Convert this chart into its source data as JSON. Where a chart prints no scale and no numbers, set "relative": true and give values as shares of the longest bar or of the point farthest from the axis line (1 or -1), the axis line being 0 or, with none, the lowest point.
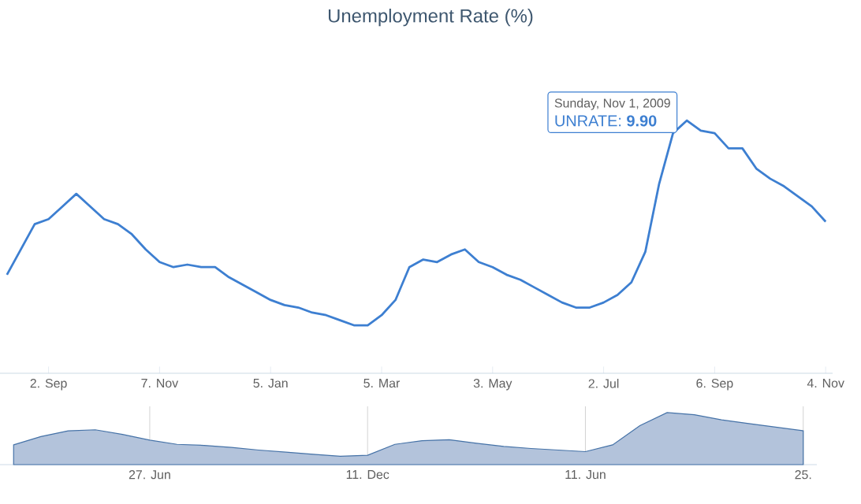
{
  "chart_data": [
    {
      "type": "line",
      "title": "Unemployment Rate (%)",
      "relative": true,
      "color": "#3d7fd1",
      "categories": [
        null,
        null,
        null,
        "2. Sep",
        null,
        null,
        null,
        null,
        null,
        null,
        null,
        "7. Nov",
        null,
        null,
        null,
        null,
        null,
        null,
        null,
        "5. Jan",
        null,
        null,
        null,
        null,
        null,
        null,
        null,
        "5. Mar",
        null,
        null,
        null,
        null,
        null,
        null,
        null,
        "3. May",
        null,
        null,
        null,
        null,
        null,
        null,
        null,
        "2. Jul",
        null,
        null,
        null,
        null,
        null,
        null,
        null,
        "6. Sep",
        null,
        null,
        null,
        null,
        null,
        null,
        null,
        "4. Nov"
      ],
      "values": [
        0.39,
        0.49,
        0.59,
        0.61,
        0.66,
        0.71,
        0.66,
        0.61,
        0.59,
        0.55,
        0.49,
        0.44,
        0.42,
        0.43,
        0.42,
        0.42,
        0.38,
        0.35,
        0.32,
        0.29,
        0.27,
        0.26,
        0.24,
        0.23,
        0.21,
        0.19,
        0.19,
        0.23,
        0.29,
        0.42,
        0.45,
        0.44,
        0.47,
        0.49,
        0.44,
        0.42,
        0.39,
        0.37,
        0.34,
        0.31,
        0.28,
        0.26,
        0.26,
        0.28,
        0.31,
        0.36,
        0.48,
        0.75,
        0.95,
        1,
        0.96,
        0.95,
        0.89,
        0.89,
        0.81,
        0.77,
        0.74,
        0.7,
        0.66,
        0.6
      ],
      "annotations": [
        "Sunday, Nov 1, 2009",
        "UNRATE: **9.90**"
      ]
    },
    {
      "type": "area",
      "relative": true,
      "color": "#b3c3db",
      "grid": "x",
      "categories": [
        null,
        null,
        null,
        null,
        null,
        "27. Jun",
        null,
        null,
        null,
        null,
        null,
        null,
        null,
        "11. Dec",
        null,
        null,
        null,
        null,
        null,
        null,
        null,
        "11. Jun",
        null,
        null,
        null,
        null,
        null,
        null,
        null,
        "25."
      ],
      "values": [
        0.38,
        0.54,
        0.65,
        0.67,
        0.58,
        0.47,
        0.39,
        0.37,
        0.33,
        0.28,
        0.24,
        0.2,
        0.16,
        0.18,
        0.39,
        0.46,
        0.48,
        0.41,
        0.35,
        0.31,
        0.28,
        0.25,
        0.38,
        0.75,
        1,
        0.96,
        0.86,
        0.79,
        0.72,
        0.65
      ]
    }
  ]
}
